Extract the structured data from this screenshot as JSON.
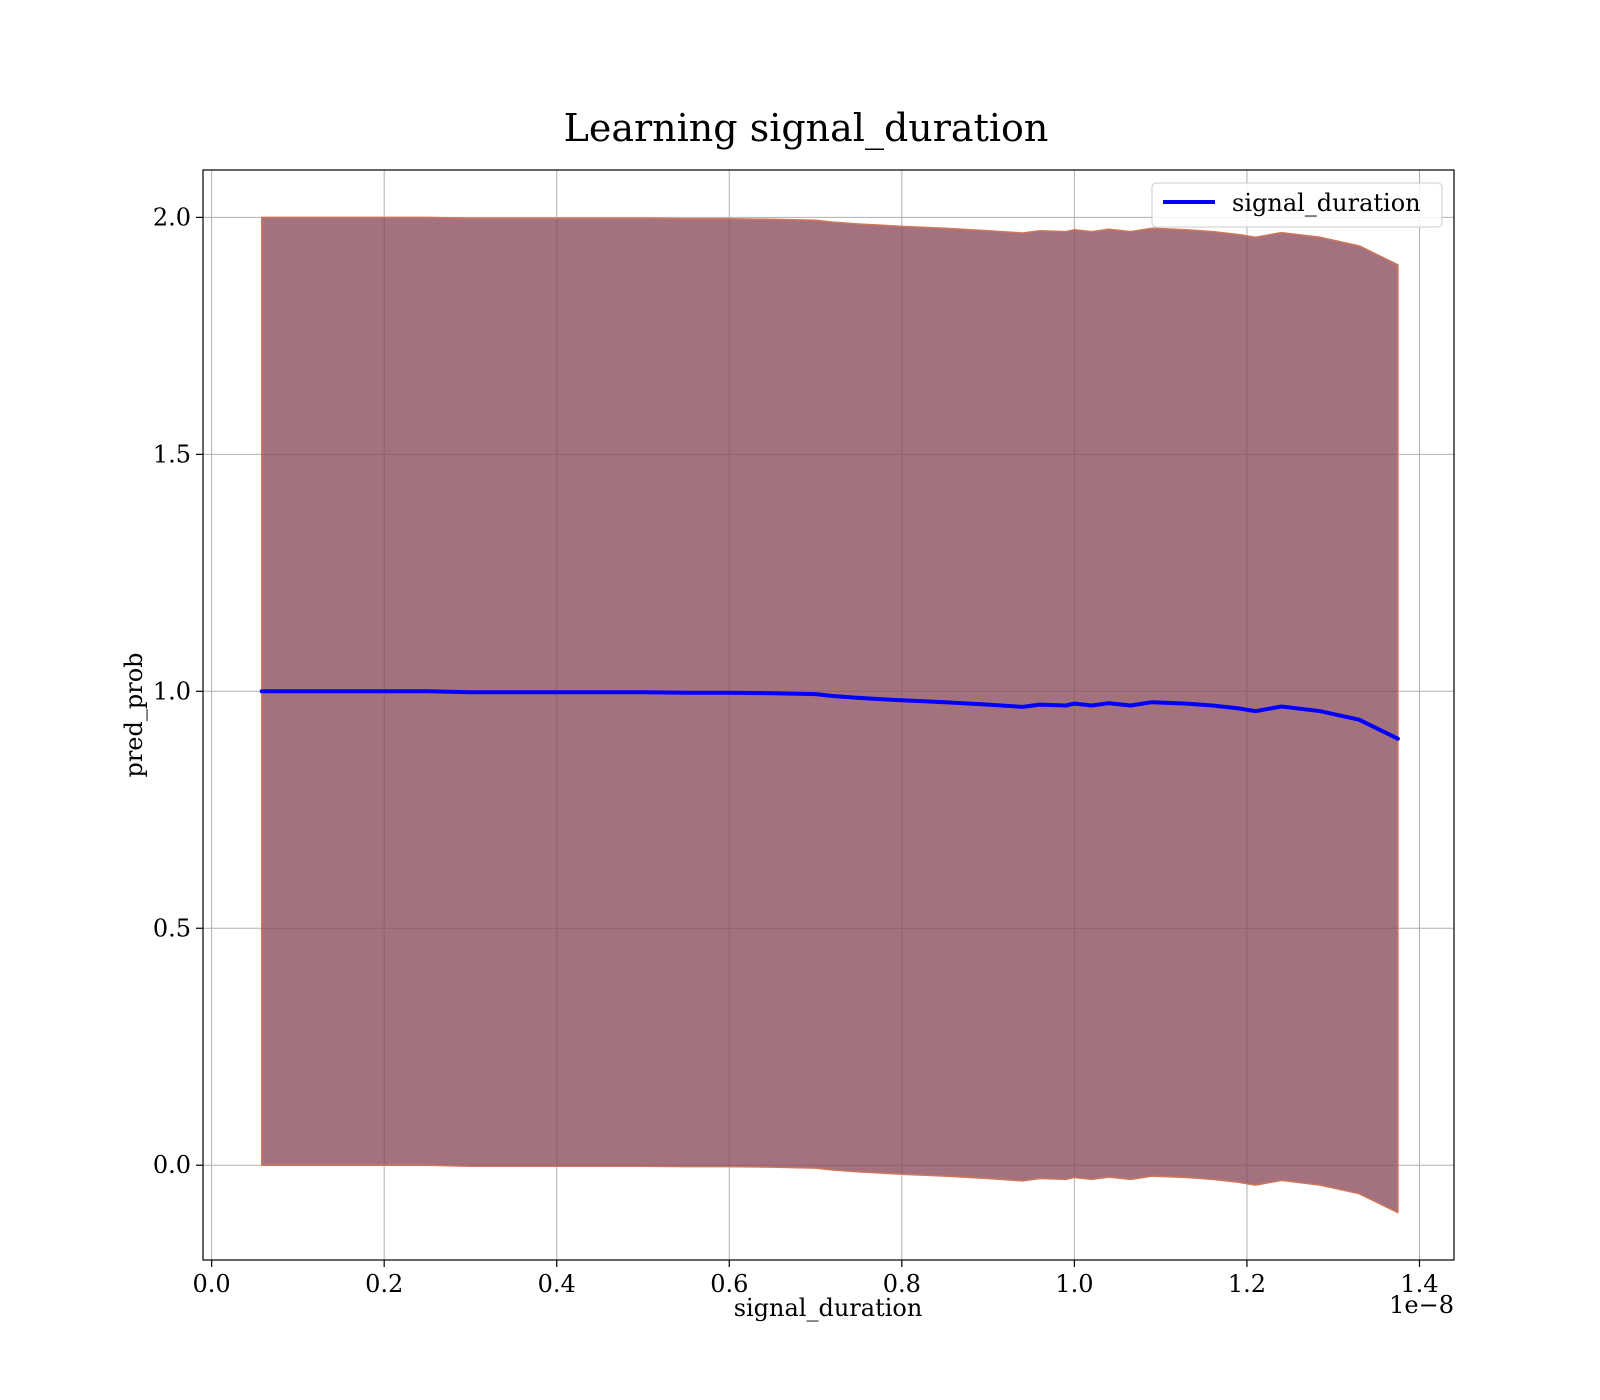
{
  "chart_data": {
    "type": "line",
    "title": "Learning signal_duration",
    "xlabel": "signal_duration",
    "ylabel": "pred_prob",
    "x_offset_label": "1e−8",
    "xlim": [
      -0.01,
      1.44
    ],
    "ylim": [
      -0.2,
      2.1
    ],
    "xticks": [
      0.0,
      0.2,
      0.4,
      0.6,
      0.8,
      1.0,
      1.2,
      1.4
    ],
    "xtick_labels": [
      "0.0",
      "0.2",
      "0.4",
      "0.6",
      "0.8",
      "1.0",
      "1.2",
      "1.4"
    ],
    "yticks": [
      0.0,
      0.5,
      1.0,
      1.5,
      2.0
    ],
    "ytick_labels": [
      "0.0",
      "0.5",
      "1.0",
      "1.5",
      "2.0"
    ],
    "grid": true,
    "legend_position": "top-right",
    "series": [
      {
        "name": "signal_duration",
        "color": "#0000ff",
        "x": [
          0.058,
          0.1,
          0.15,
          0.2,
          0.25,
          0.3,
          0.35,
          0.4,
          0.45,
          0.5,
          0.55,
          0.6,
          0.65,
          0.7,
          0.72,
          0.75,
          0.78,
          0.8,
          0.85,
          0.9,
          0.94,
          0.96,
          0.99,
          1.0,
          1.02,
          1.04,
          1.065,
          1.09,
          1.13,
          1.16,
          1.19,
          1.21,
          1.24,
          1.285,
          1.33,
          1.375
        ],
        "y": [
          1.0,
          1.0,
          1.0,
          1.0,
          1.0,
          0.998,
          0.998,
          0.998,
          0.998,
          0.998,
          0.997,
          0.997,
          0.996,
          0.994,
          0.99,
          0.986,
          0.983,
          0.981,
          0.977,
          0.972,
          0.967,
          0.972,
          0.97,
          0.974,
          0.97,
          0.975,
          0.97,
          0.977,
          0.974,
          0.97,
          0.964,
          0.958,
          0.968,
          0.958,
          0.94,
          0.9
        ]
      }
    ],
    "band": {
      "color": "#8b4a5a",
      "edge_color": "#d0765a",
      "x": [
        0.058,
        0.1,
        0.15,
        0.2,
        0.25,
        0.3,
        0.35,
        0.4,
        0.45,
        0.5,
        0.55,
        0.6,
        0.65,
        0.7,
        0.72,
        0.75,
        0.78,
        0.8,
        0.85,
        0.9,
        0.94,
        0.96,
        0.99,
        1.0,
        1.02,
        1.04,
        1.065,
        1.09,
        1.13,
        1.16,
        1.19,
        1.21,
        1.24,
        1.285,
        1.33,
        1.375
      ],
      "upper": [
        2.0,
        2.0,
        2.0,
        2.0,
        2.0,
        1.998,
        1.998,
        1.998,
        1.998,
        1.998,
        1.997,
        1.997,
        1.996,
        1.994,
        1.99,
        1.986,
        1.983,
        1.981,
        1.977,
        1.972,
        1.967,
        1.972,
        1.97,
        1.974,
        1.97,
        1.975,
        1.97,
        1.977,
        1.974,
        1.97,
        1.964,
        1.958,
        1.968,
        1.958,
        1.94,
        1.9
      ],
      "lower": [
        0.0,
        0.0,
        0.0,
        0.0,
        0.0,
        -0.002,
        -0.002,
        -0.002,
        -0.002,
        -0.002,
        -0.003,
        -0.003,
        -0.004,
        -0.006,
        -0.01,
        -0.014,
        -0.017,
        -0.019,
        -0.023,
        -0.028,
        -0.033,
        -0.028,
        -0.03,
        -0.026,
        -0.03,
        -0.025,
        -0.03,
        -0.023,
        -0.026,
        -0.03,
        -0.036,
        -0.042,
        -0.032,
        -0.042,
        -0.06,
        -0.1
      ]
    }
  }
}
